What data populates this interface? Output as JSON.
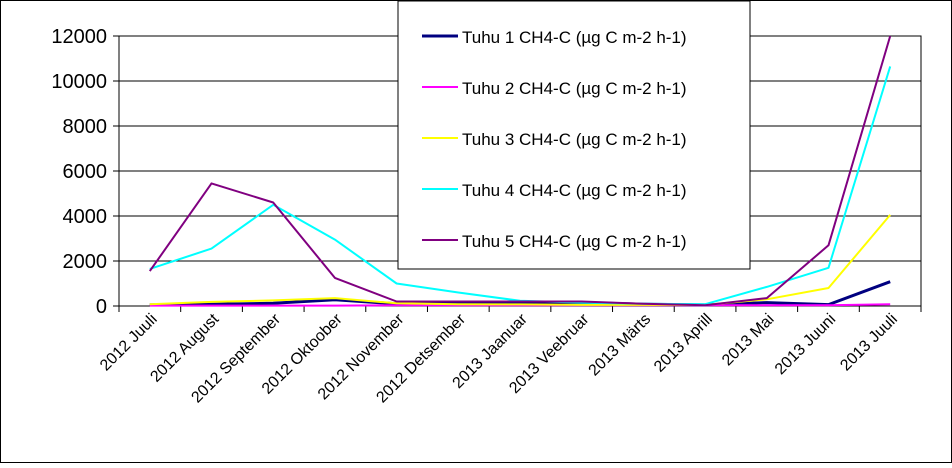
{
  "chart_data": {
    "type": "line",
    "categories": [
      "2012 Juuli",
      "2012 August",
      "2012 September",
      "2012 Oktoober",
      "2012 November",
      "2012 Detsember",
      "2013 Jaanuar",
      "2013 Veebruar",
      "2013 Märts",
      "2013 Aprill",
      "2013 Mai",
      "2013 Juuni",
      "2013 Juuli"
    ],
    "ylim": [
      0,
      12000
    ],
    "yticks": [
      0,
      2000,
      4000,
      6000,
      8000,
      10000,
      12000
    ],
    "grid": true,
    "legend_position": "top-right",
    "series": [
      {
        "name": "Tuhu 1 CH4-C (µg C m-2 h-1)",
        "color": "#000080",
        "values": [
          50,
          80,
          120,
          280,
          100,
          100,
          150,
          150,
          80,
          50,
          150,
          60,
          1080
        ]
      },
      {
        "name": "Tuhu 2 CH4-C (µg C m-2 h-1)",
        "color": "#ff00ff",
        "values": [
          20,
          20,
          20,
          20,
          30,
          30,
          30,
          30,
          30,
          30,
          30,
          30,
          80
        ]
      },
      {
        "name": "Tuhu 3 CH4-C (µg C m-2 h-1)",
        "color": "#ffff00",
        "values": [
          80,
          180,
          250,
          350,
          120,
          80,
          70,
          50,
          50,
          50,
          300,
          800,
          4050
        ]
      },
      {
        "name": "Tuhu 4 CH4-C (µg C m-2 h-1)",
        "color": "#00ffff",
        "values": [
          1650,
          2550,
          4500,
          2950,
          1000,
          600,
          230,
          150,
          100,
          80,
          850,
          1700,
          10650
        ]
      },
      {
        "name": "Tuhu 5 CH4-C (µg C m-2 h-1)",
        "color": "#800080",
        "values": [
          1550,
          5450,
          4600,
          1250,
          200,
          200,
          200,
          200,
          100,
          30,
          350,
          2700,
          12000
        ]
      }
    ]
  }
}
